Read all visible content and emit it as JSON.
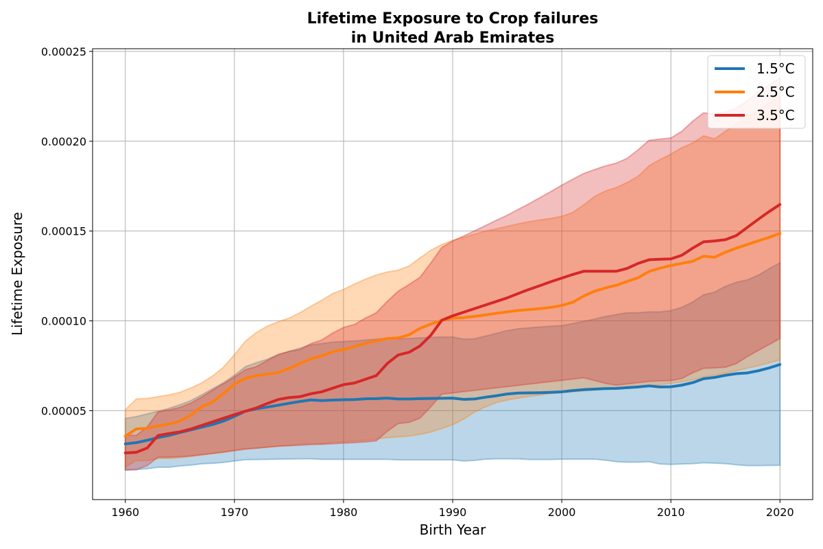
{
  "chart_data": {
    "type": "area",
    "title": [
      "Lifetime Exposure to Crop failures",
      "in United Arab Emirates"
    ],
    "xlabel": "Birth Year",
    "ylabel": "Lifetime Exposure",
    "xlim": [
      1957,
      2023
    ],
    "ylim": [
      5e-07,
      0.0002515
    ],
    "xticks": [
      1960,
      1970,
      1980,
      1990,
      2000,
      2010,
      2020
    ],
    "xtick_labels": [
      "1960",
      "1970",
      "1980",
      "1990",
      "2000",
      "2010",
      "2020"
    ],
    "yticks": [
      5e-05,
      0.0001,
      0.00015,
      0.0002,
      0.00025
    ],
    "ytick_labels": [
      "0.00005",
      "0.00010",
      "0.00015",
      "0.00020",
      "0.00025"
    ],
    "grid": true,
    "legend_position": "top-right",
    "x": [
      1960,
      1961,
      1962,
      1963,
      1964,
      1965,
      1966,
      1967,
      1968,
      1969,
      1970,
      1971,
      1972,
      1973,
      1974,
      1975,
      1976,
      1977,
      1978,
      1979,
      1980,
      1981,
      1982,
      1983,
      1984,
      1985,
      1986,
      1987,
      1988,
      1989,
      1990,
      1991,
      1992,
      1993,
      1994,
      1995,
      1996,
      1997,
      1998,
      1999,
      2000,
      2001,
      2002,
      2003,
      2004,
      2005,
      2006,
      2007,
      2008,
      2009,
      2010,
      2011,
      2012,
      2013,
      2014,
      2015,
      2016,
      2017,
      2018,
      2019,
      2020
    ],
    "series": [
      {
        "name": "1.5°C",
        "color": "#1f77b4",
        "values": [
          3.15e-05,
          3.22e-05,
          3.35e-05,
          3.5e-05,
          3.62e-05,
          3.78e-05,
          3.93e-05,
          4.08e-05,
          4.23e-05,
          4.42e-05,
          4.68e-05,
          4.97e-05,
          5.1e-05,
          5.2e-05,
          5.3e-05,
          5.41e-05,
          5.51e-05,
          5.6e-05,
          5.56e-05,
          5.59e-05,
          5.61e-05,
          5.62e-05,
          5.66e-05,
          5.67e-05,
          5.7e-05,
          5.65e-05,
          5.65e-05,
          5.67e-05,
          5.68e-05,
          5.69e-05,
          5.7e-05,
          5.63e-05,
          5.65e-05,
          5.75e-05,
          5.83e-05,
          5.93e-05,
          5.98e-05,
          5.99e-05,
          6e-05,
          6.02e-05,
          6.05e-05,
          6.12e-05,
          6.17e-05,
          6.2e-05,
          6.23e-05,
          6.24e-05,
          6.28e-05,
          6.32e-05,
          6.38e-05,
          6.32e-05,
          6.33e-05,
          6.42e-05,
          6.56e-05,
          6.78e-05,
          6.85e-05,
          6.97e-05,
          7.06e-05,
          7.1e-05,
          7.22e-05,
          7.38e-05,
          7.57e-05
        ],
        "lower": [
          1.7e-05,
          1.72e-05,
          1.77e-05,
          1.85e-05,
          1.85e-05,
          1.92e-05,
          1.97e-05,
          2.04e-05,
          2.07e-05,
          2.12e-05,
          2.2e-05,
          2.27e-05,
          2.28e-05,
          2.29e-05,
          2.3e-05,
          2.31e-05,
          2.32e-05,
          2.32e-05,
          2.29e-05,
          2.29e-05,
          2.29e-05,
          2.29e-05,
          2.29e-05,
          2.29e-05,
          2.29e-05,
          2.26e-05,
          2.26e-05,
          2.26e-05,
          2.26e-05,
          2.26e-05,
          2.26e-05,
          2.2e-05,
          2.23e-05,
          2.3e-05,
          2.32e-05,
          2.32e-05,
          2.32e-05,
          2.28e-05,
          2.28e-05,
          2.28e-05,
          2.3e-05,
          2.3e-05,
          2.3e-05,
          2.3e-05,
          2.24e-05,
          2.16e-05,
          2.13e-05,
          2.13e-05,
          2.16e-05,
          2.03e-05,
          2.01e-05,
          2.03e-05,
          2.05e-05,
          2.1e-05,
          2.08e-05,
          2.05e-05,
          1.99e-05,
          1.94e-05,
          1.94e-05,
          1.95e-05,
          1.96e-05
        ],
        "upper": [
          4.57e-05,
          4.67e-05,
          4.82e-05,
          4.97e-05,
          5.13e-05,
          5.33e-05,
          5.56e-05,
          5.88e-05,
          6.22e-05,
          6.56e-05,
          6.97e-05,
          7.45e-05,
          7.67e-05,
          7.86e-05,
          8.12e-05,
          8.3e-05,
          8.48e-05,
          8.66e-05,
          8.73e-05,
          8.82e-05,
          8.85e-05,
          8.88e-05,
          8.93e-05,
          8.98e-05,
          9.03e-05,
          9e-05,
          9.02e-05,
          9.05e-05,
          9.08e-05,
          9.1e-05,
          9.1e-05,
          8.98e-05,
          9e-05,
          9.15e-05,
          9.3e-05,
          9.46e-05,
          9.56e-05,
          9.61e-05,
          9.66e-05,
          9.7e-05,
          9.73e-05,
          9.85e-05,
          9.97e-05,
          0.000101,
          0.0001024,
          0.0001035,
          0.0001045,
          0.0001045,
          0.000105,
          0.000105,
          0.0001057,
          0.0001075,
          0.0001105,
          0.0001145,
          0.000116,
          0.0001192,
          0.0001215,
          0.0001228,
          0.0001254,
          0.000129,
          0.0001323
        ]
      },
      {
        "name": "2.5°C",
        "color": "#ff7f0e",
        "values": [
          3.58e-05,
          3.98e-05,
          4.02e-05,
          4.15e-05,
          4.25e-05,
          4.42e-05,
          4.75e-05,
          5.22e-05,
          5.48e-05,
          5.95e-05,
          6.48e-05,
          6.8e-05,
          6.95e-05,
          7.03e-05,
          7.12e-05,
          7.35e-05,
          7.62e-05,
          7.88e-05,
          8.05e-05,
          8.28e-05,
          8.4e-05,
          8.58e-05,
          8.75e-05,
          8.88e-05,
          9.02e-05,
          9.05e-05,
          9.22e-05,
          9.58e-05,
          9.82e-05,
          0.0001003,
          0.0001015,
          0.0001018,
          0.0001025,
          0.0001033,
          0.0001042,
          0.000105,
          0.0001058,
          0.0001063,
          0.0001068,
          0.0001075,
          0.0001086,
          0.0001103,
          0.0001138,
          0.0001165,
          0.0001183,
          0.0001198,
          0.000122,
          0.000124,
          0.0001275,
          0.0001293,
          0.0001308,
          0.000132,
          0.0001332,
          0.000136,
          0.0001354,
          0.0001382,
          0.0001405,
          0.0001425,
          0.0001445,
          0.0001465,
          0.0001487
        ],
        "lower": [
          1.85e-05,
          2.23e-05,
          2.22e-05,
          2.34e-05,
          2.34e-05,
          2.38e-05,
          2.45e-05,
          2.53e-05,
          2.62e-05,
          2.72e-05,
          2.81e-05,
          2.88e-05,
          2.91e-05,
          2.97e-05,
          3.03e-05,
          3.07e-05,
          3.13e-05,
          3.17e-05,
          3.15e-05,
          3.23e-05,
          3.27e-05,
          3.31e-05,
          3.35e-05,
          3.42e-05,
          3.5e-05,
          3.54e-05,
          3.59e-05,
          3.68e-05,
          3.81e-05,
          4.01e-05,
          4.21e-05,
          4.53e-05,
          4.92e-05,
          5.21e-05,
          5.45e-05,
          5.59e-05,
          5.7e-05,
          5.79e-05,
          5.87e-05,
          5.96e-05,
          6.01e-05,
          6.05e-05,
          6.1e-05,
          6.15e-05,
          6.2e-05,
          6.25e-05,
          6.3e-05,
          6.34e-05,
          6.39e-05,
          6.45e-05,
          6.52e-05,
          6.6e-05,
          6.72e-05,
          6.88e-05,
          6.98e-05,
          7.09e-05,
          7.22e-05,
          7.36e-05,
          7.5e-05,
          7.66e-05,
          7.83e-05
        ],
        "upper": [
          5.05e-05,
          5.65e-05,
          5.68e-05,
          5.78e-05,
          5.88e-05,
          6.02e-05,
          6.26e-05,
          6.55e-05,
          6.93e-05,
          7.42e-05,
          8.12e-05,
          8.86e-05,
          9.35e-05,
          9.7e-05,
          9.95e-05,
          0.0001015,
          0.0001045,
          0.0001081,
          0.0001115,
          0.0001152,
          0.0001175,
          0.0001205,
          0.0001232,
          0.0001255,
          0.0001272,
          0.0001282,
          0.0001305,
          0.000135,
          0.0001393,
          0.0001425,
          0.0001448,
          0.0001465,
          0.0001482,
          0.0001499,
          0.0001512,
          0.0001526,
          0.000154,
          0.0001552,
          0.0001562,
          0.000157,
          0.0001582,
          0.0001603,
          0.0001645,
          0.0001692,
          0.0001723,
          0.0001742,
          0.000177,
          0.0001805,
          0.0001863,
          0.0001898,
          0.0001928,
          0.0001964,
          0.000199,
          0.000203,
          0.0002013,
          0.0002055,
          0.0002096,
          0.0002135,
          0.0002172,
          0.0002212,
          0.0002248
        ]
      },
      {
        "name": "3.5°C",
        "color": "#d62728",
        "values": [
          2.65e-05,
          2.68e-05,
          2.92e-05,
          3.62e-05,
          3.73e-05,
          3.82e-05,
          3.98e-05,
          4.18e-05,
          4.38e-05,
          4.58e-05,
          4.78e-05,
          4.97e-05,
          5.15e-05,
          5.4e-05,
          5.62e-05,
          5.73e-05,
          5.78e-05,
          5.94e-05,
          6.05e-05,
          6.25e-05,
          6.45e-05,
          6.54e-05,
          6.75e-05,
          6.95e-05,
          7.62e-05,
          8.1e-05,
          8.25e-05,
          8.6e-05,
          9.2e-05,
          0.0001003,
          0.0001028,
          0.0001048,
          0.0001068,
          0.0001088,
          0.0001108,
          0.0001128,
          0.0001152,
          0.0001175,
          0.0001196,
          0.0001218,
          0.0001238,
          0.0001258,
          0.0001276,
          0.0001276,
          0.0001276,
          0.0001276,
          0.0001292,
          0.000132,
          0.000134,
          0.0001343,
          0.0001345,
          0.0001365,
          0.0001405,
          0.000144,
          0.0001445,
          0.0001452,
          0.0001475,
          0.000152,
          0.0001565,
          0.0001608,
          0.0001648
        ],
        "lower": [
          1.7e-05,
          1.71e-05,
          1.94e-05,
          2.41e-05,
          2.41e-05,
          2.44e-05,
          2.48e-05,
          2.55e-05,
          2.62e-05,
          2.68e-05,
          2.77e-05,
          2.86e-05,
          2.91e-05,
          2.97e-05,
          3.02e-05,
          3.05e-05,
          3.08e-05,
          3.11e-05,
          3.13e-05,
          3.16e-05,
          3.19e-05,
          3.22e-05,
          3.26e-05,
          3.32e-05,
          3.85e-05,
          4.28e-05,
          4.35e-05,
          4.58e-05,
          5.22e-05,
          5.92e-05,
          5.99e-05,
          6.06e-05,
          6.13e-05,
          6.2e-05,
          6.27e-05,
          6.34e-05,
          6.41e-05,
          6.48e-05,
          6.55e-05,
          6.62e-05,
          6.69e-05,
          6.76e-05,
          6.83e-05,
          6.68e-05,
          6.52e-05,
          6.42e-05,
          6.49e-05,
          6.56e-05,
          6.63e-05,
          6.66e-05,
          6.68e-05,
          6.79e-05,
          7.11e-05,
          7.36e-05,
          7.38e-05,
          7.42e-05,
          7.62e-05,
          8.01e-05,
          8.35e-05,
          8.68e-05,
          9.02e-05
        ],
        "upper": [
          3.62e-05,
          3.63e-05,
          4.08e-05,
          4.93e-05,
          5.04e-05,
          5.18e-05,
          5.42e-05,
          5.76e-05,
          6.14e-05,
          6.5e-05,
          6.87e-05,
          7.28e-05,
          7.45e-05,
          7.79e-05,
          8.12e-05,
          8.3e-05,
          8.4e-05,
          8.73e-05,
          8.93e-05,
          9.32e-05,
          9.63e-05,
          9.8e-05,
          0.0001015,
          0.0001045,
          0.0001108,
          0.0001165,
          0.0001202,
          0.0001242,
          0.0001322,
          0.0001408,
          0.0001445,
          0.0001472,
          0.0001501,
          0.000153,
          0.000156,
          0.0001588,
          0.000162,
          0.0001652,
          0.0001686,
          0.000172,
          0.0001755,
          0.0001788,
          0.000182,
          0.0001842,
          0.0001863,
          0.0001878,
          0.0001905,
          0.0001952,
          0.0002005,
          0.0002012,
          0.0002018,
          0.0002055,
          0.0002112,
          0.0002158,
          0.0002152,
          0.0002162,
          0.0002185,
          0.0002225,
          0.0002275,
          0.0002312,
          0.0002352
        ]
      }
    ]
  }
}
